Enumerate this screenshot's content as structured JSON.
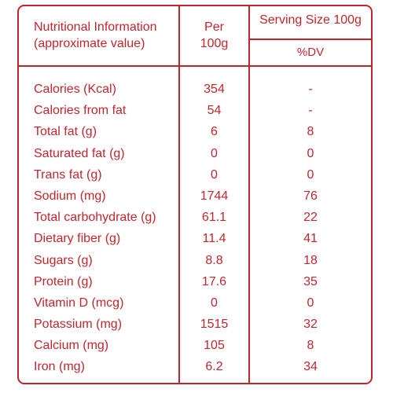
{
  "header": {
    "nutrient_heading_line1": "Nutritional Information",
    "nutrient_heading_line2": "(approximate value)",
    "per_line1": "Per",
    "per_line2": "100g",
    "serving_size": "Serving Size 100g",
    "dv": "%DV"
  },
  "rows": [
    {
      "name": "Calories (Kcal)",
      "per_100g": "354",
      "dv": "-"
    },
    {
      "name": "Calories from fat",
      "per_100g": "54",
      "dv": "-"
    },
    {
      "name": "Total fat (g)",
      "per_100g": "6",
      "dv": "8"
    },
    {
      "name": "Saturated fat (g)",
      "per_100g": "0",
      "dv": "0"
    },
    {
      "name": "Trans fat (g)",
      "per_100g": "0",
      "dv": "0"
    },
    {
      "name": "Sodium (mg)",
      "per_100g": "1744",
      "dv": "76"
    },
    {
      "name": "Total carbohydrate (g)",
      "per_100g": "61.1",
      "dv": "22"
    },
    {
      "name": "Dietary fiber (g)",
      "per_100g": "11.4",
      "dv": "41"
    },
    {
      "name": "Sugars (g)",
      "per_100g": "8.8",
      "dv": "18"
    },
    {
      "name": "Protein (g)",
      "per_100g": "17.6",
      "dv": "35"
    },
    {
      "name": "Vitamin D (mcg)",
      "per_100g": "0",
      "dv": "0"
    },
    {
      "name": "Potassium (mg)",
      "per_100g": "1515",
      "dv": "32"
    },
    {
      "name": "Calcium (mg)",
      "per_100g": "105",
      "dv": "8"
    },
    {
      "name": "Iron (mg)",
      "per_100g": "6.2",
      "dv": "34"
    }
  ],
  "colors": {
    "accent": "#c0272d",
    "background": "#ffffff"
  }
}
